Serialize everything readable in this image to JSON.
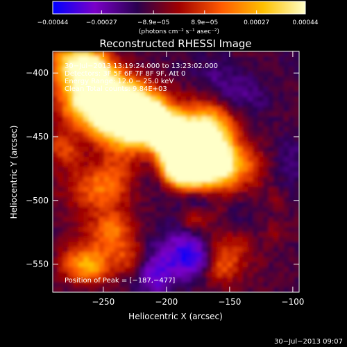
{
  "chart_data": {
    "type": "heatmap",
    "title": "Reconstructed RHESSI Image",
    "xlabel": "Heliocentric X (arcsec)",
    "ylabel": "Heliocentric Y (arcsec)",
    "xlim": [
      -290,
      -95
    ],
    "ylim": [
      -572,
      -383
    ],
    "x_ticks": [
      {
        "value": -250,
        "label": "−250"
      },
      {
        "value": -200,
        "label": "−200"
      },
      {
        "value": -150,
        "label": "−150"
      },
      {
        "value": -100,
        "label": "−100"
      }
    ],
    "y_ticks": [
      {
        "value": -400,
        "label": "−400"
      },
      {
        "value": -450,
        "label": "−450"
      },
      {
        "value": -500,
        "label": "−500"
      },
      {
        "value": -550,
        "label": "−550"
      }
    ],
    "colorbar": {
      "range": [
        -0.00044,
        0.00044
      ],
      "unit": "(photons cm⁻² s⁻¹ asec⁻²)",
      "ticks": [
        {
          "value": -0.00044,
          "label": "−0.00044"
        },
        {
          "value": -0.00027,
          "label": "−0.00027"
        },
        {
          "value": -8.9e-05,
          "label": "−8.9e−05"
        },
        {
          "value": 8.9e-05,
          "label": "8.9e−05"
        },
        {
          "value": 0.00027,
          "label": "0.00027"
        },
        {
          "value": 0.00044,
          "label": "0.00044"
        }
      ],
      "stops": [
        "#0000ff",
        "#7a00c8",
        "#2a0050",
        "#a00000",
        "#ff5a00",
        "#ffc000",
        "#ffffc8"
      ]
    },
    "annotations": [
      "30−Jul−2013 13:19:24.000 to 13:23:02.000",
      "Detectors: 3F 5F 6F 7F 8F 9F, Att 0",
      "Energy Range: 12.0 − 25.0 keV",
      "Clean     Total counts: 9.84E+03"
    ],
    "peak_label": "Position of Peak = [−187,−477]",
    "peak": [
      -187,
      -477
    ]
  },
  "footer": {
    "timestamp": "30−Jul−2013 09:07"
  }
}
